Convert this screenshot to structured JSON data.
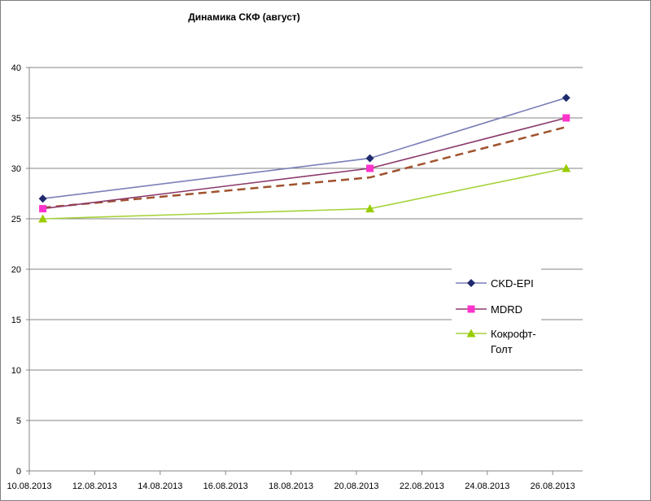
{
  "chart_data": {
    "type": "line",
    "title": "Динамика СКФ (август)",
    "xlabel": "",
    "ylabel": "",
    "ylim": [
      0,
      40
    ],
    "y_ticks": [
      "0",
      "5",
      "10",
      "15",
      "20",
      "25",
      "30",
      "35",
      "40"
    ],
    "x_ticks": [
      "10.08.2013",
      "12.08.2013",
      "14.08.2013",
      "16.08.2013",
      "18.08.2013",
      "20.08.2013",
      "22.08.2013",
      "24.08.2013",
      "26.08.2013"
    ],
    "x": [
      "10.08.2013",
      "20.08.2013",
      "26.08.2013"
    ],
    "grid": "horizontal",
    "legend_position": "right",
    "series": [
      {
        "name": "CKD-EPI",
        "values": [
          27,
          31,
          37
        ],
        "color": "#7a7fb8",
        "marker": "diamond",
        "marker_color": "#1f2a6e"
      },
      {
        "name": "MDRD",
        "values": [
          26,
          30,
          35
        ],
        "color": "#8b3a6b",
        "marker": "square",
        "marker_color": "#ff33cc"
      },
      {
        "name": "Кокрофт-Голт",
        "values": [
          25,
          26,
          30
        ],
        "color": "#a6d23a",
        "marker": "triangle",
        "marker_color": "#99cc00"
      }
    ],
    "trendline": {
      "color": "#a0522d",
      "style": "dashed"
    }
  }
}
